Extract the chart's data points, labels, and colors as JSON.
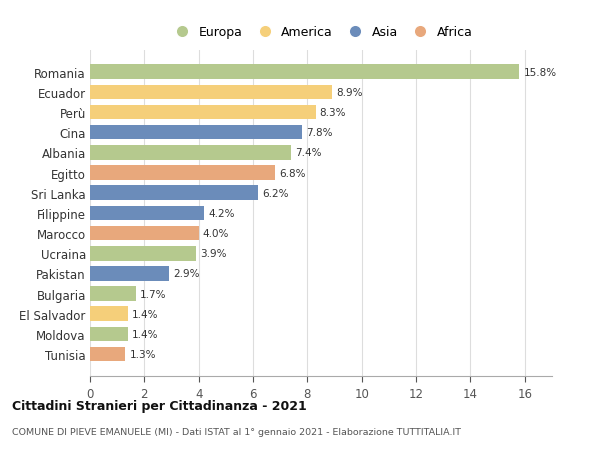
{
  "countries": [
    "Romania",
    "Ecuador",
    "Perù",
    "Cina",
    "Albania",
    "Egitto",
    "Sri Lanka",
    "Filippine",
    "Marocco",
    "Ucraina",
    "Pakistan",
    "Bulgaria",
    "El Salvador",
    "Moldova",
    "Tunisia"
  ],
  "values": [
    15.8,
    8.9,
    8.3,
    7.8,
    7.4,
    6.8,
    6.2,
    4.2,
    4.0,
    3.9,
    2.9,
    1.7,
    1.4,
    1.4,
    1.3
  ],
  "continents": [
    "Europa",
    "America",
    "America",
    "Asia",
    "Europa",
    "Africa",
    "Asia",
    "Asia",
    "Africa",
    "Europa",
    "Asia",
    "Europa",
    "America",
    "Europa",
    "Africa"
  ],
  "colors": {
    "Europa": "#b5c98e",
    "America": "#f5cf7a",
    "Asia": "#6b8cba",
    "Africa": "#e8a87c"
  },
  "legend_order": [
    "Europa",
    "America",
    "Asia",
    "Africa"
  ],
  "title": "Cittadini Stranieri per Cittadinanza - 2021",
  "subtitle": "COMUNE DI PIEVE EMANUELE (MI) - Dati ISTAT al 1° gennaio 2021 - Elaborazione TUTTITALIA.IT",
  "xlim": [
    0,
    17
  ],
  "xticks": [
    0,
    2,
    4,
    6,
    8,
    10,
    12,
    14,
    16
  ],
  "background_color": "#ffffff",
  "grid_color": "#dddddd",
  "bar_height": 0.72
}
